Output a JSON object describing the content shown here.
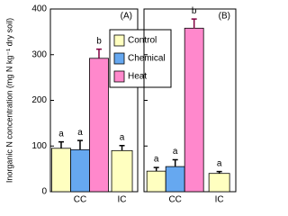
{
  "chart_data": [
    {
      "type": "bar",
      "panel": "(A)",
      "y_label": "Inorganic N concentration (mg N kg⁻¹ dry soil)",
      "categories": [
        "CC",
        "IC"
      ],
      "ylim": [
        0,
        400
      ],
      "yticks": [
        0,
        100,
        200,
        300,
        400
      ],
      "legend": true,
      "series": [
        {
          "name": "Control",
          "color": "#ffffc0",
          "values": [
            95,
            90
          ],
          "errors": [
            14,
            11
          ],
          "letters": [
            "a",
            "a"
          ]
        },
        {
          "name": "Chemical",
          "color": "#66a8f0",
          "values": [
            92,
            null
          ],
          "errors": [
            20,
            null
          ],
          "letters": [
            "a",
            null
          ]
        },
        {
          "name": "Heat",
          "color": "#ff88cc",
          "values": [
            292,
            null
          ],
          "errors": [
            20,
            null
          ],
          "letters": [
            "b",
            null
          ]
        }
      ]
    },
    {
      "type": "bar",
      "panel": "(B)",
      "categories": [
        "CC",
        "IC"
      ],
      "ylim": [
        0,
        400
      ],
      "yticks": [
        0,
        100,
        200,
        300,
        400
      ],
      "series": [
        {
          "color": "#ffffc0",
          "values": [
            45,
            40
          ],
          "errors": [
            8,
            4
          ],
          "letters": [
            "a",
            "a"
          ]
        },
        {
          "color": "#66a8f0",
          "values": [
            55,
            null
          ],
          "errors": [
            15,
            null
          ],
          "letters": [
            "a",
            null
          ]
        },
        {
          "color": "#ff88cc",
          "values": [
            358,
            null
          ],
          "errors": [
            20,
            null
          ],
          "letters": [
            "b",
            null
          ]
        }
      ]
    }
  ]
}
